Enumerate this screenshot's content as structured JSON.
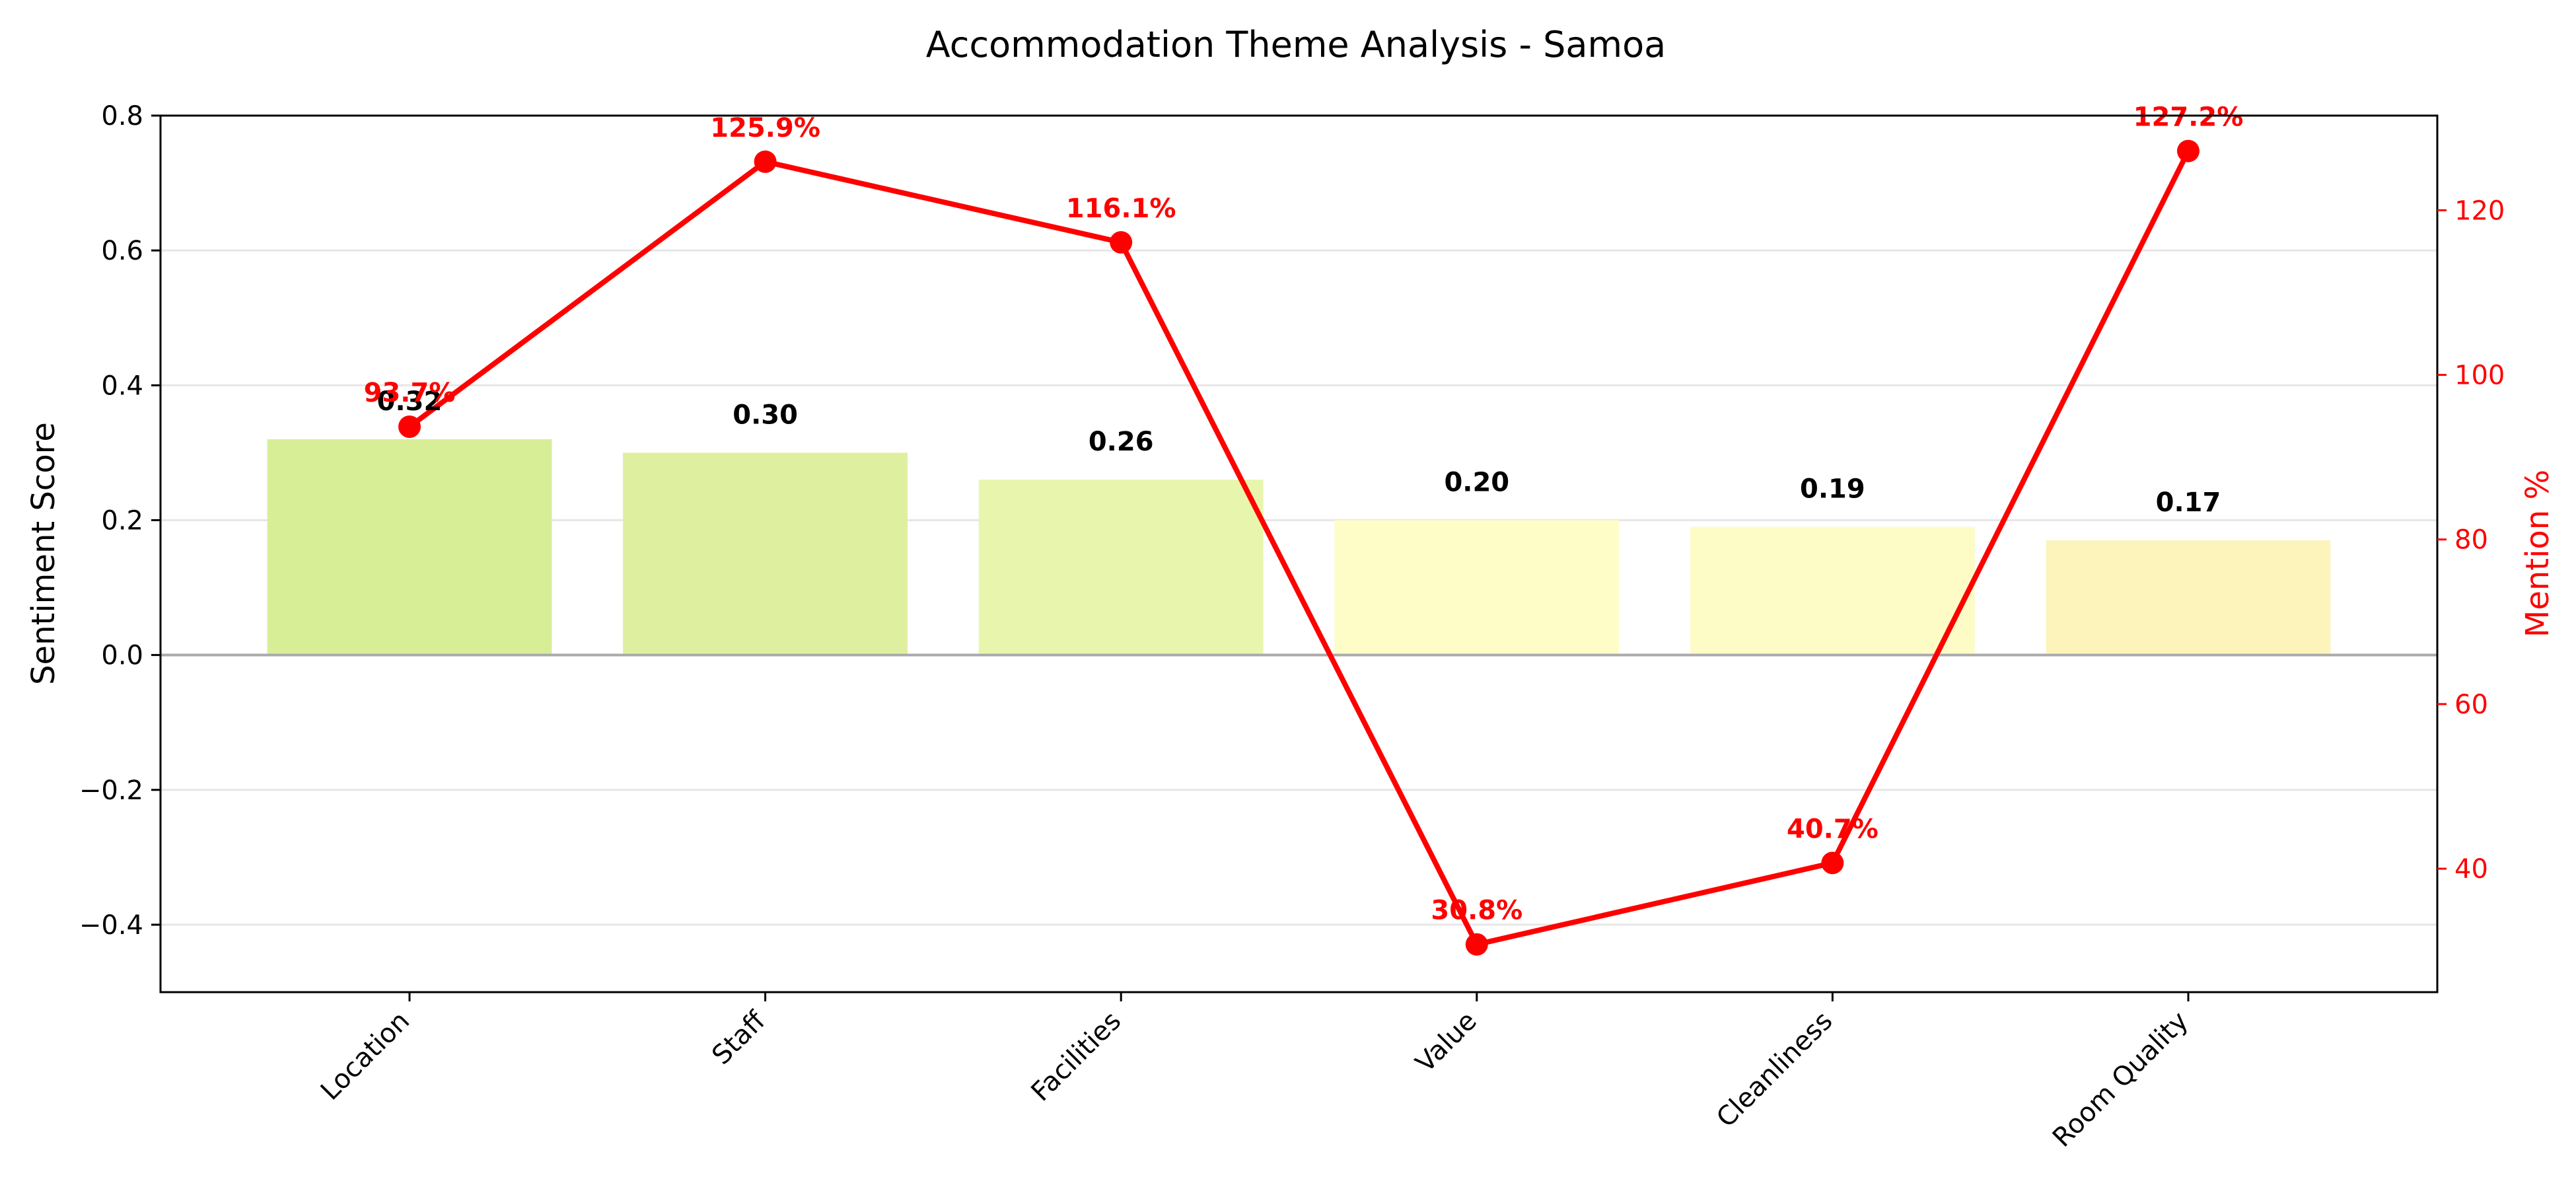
{
  "chart_data": {
    "type": "bar",
    "title": "Accommodation Theme Analysis - Samoa",
    "ylabel": "Sentiment Score",
    "y2label": "Mention %",
    "categories": [
      "Location",
      "Staff",
      "Facilities",
      "Value",
      "Cleanliness",
      "Room Quality"
    ],
    "ylim": [
      -0.5,
      0.8
    ],
    "y2lim": [
      25,
      131.5
    ],
    "y_ticks": [
      "0.8",
      "0.6",
      "0.4",
      "0.2",
      "0.0",
      "−0.2",
      "−0.4"
    ],
    "y2_ticks": [
      "120",
      "100",
      "80",
      "60",
      "40"
    ],
    "grid": "horizontal",
    "series": [
      {
        "kind": "bar",
        "values": [
          0.32,
          0.3,
          0.26,
          0.2,
          0.19,
          0.17
        ],
        "labels": [
          "0.32",
          "0.30",
          "0.26",
          "0.20",
          "0.19",
          "0.17"
        ],
        "colors": [
          "#d7ee97",
          "#dfefa0",
          "#e8f5ad",
          "#fefdc8",
          "#fefcc6",
          "#fdf4bc"
        ]
      },
      {
        "kind": "line",
        "axis": "right",
        "values": [
          93.7,
          125.9,
          116.1,
          30.8,
          40.7,
          127.2
        ],
        "labels": [
          "93.7%",
          "125.9%",
          "116.1%",
          "30.8%",
          "40.7%",
          "127.2%"
        ],
        "color": "#ff0000"
      }
    ]
  }
}
